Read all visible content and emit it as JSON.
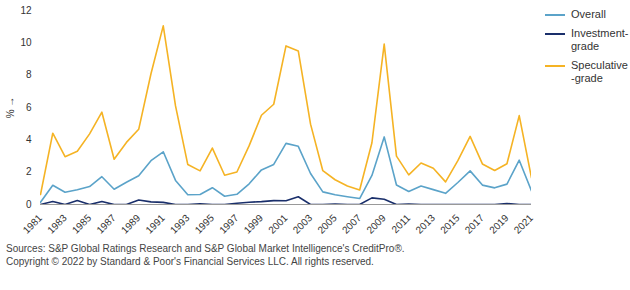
{
  "chart_data": {
    "type": "line",
    "y_label": "%",
    "x": [
      1981,
      1982,
      1983,
      1984,
      1985,
      1986,
      1987,
      1988,
      1989,
      1990,
      1991,
      1992,
      1993,
      1994,
      1995,
      1996,
      1997,
      1998,
      1999,
      2000,
      2001,
      2002,
      2003,
      2004,
      2005,
      2006,
      2007,
      2008,
      2009,
      2010,
      2011,
      2012,
      2013,
      2014,
      2015,
      2016,
      2017,
      2018,
      2019,
      2020,
      2021
    ],
    "xlim": [
      1981,
      2021
    ],
    "xticks": [
      1981,
      1983,
      1985,
      1987,
      1989,
      1991,
      1993,
      1995,
      1997,
      1999,
      2001,
      2003,
      2005,
      2007,
      2009,
      2011,
      2013,
      2015,
      2017,
      2019,
      2021
    ],
    "ylim": [
      0,
      12
    ],
    "yticks": [
      0,
      2,
      4,
      6,
      8,
      10,
      12
    ],
    "grid": false,
    "legend": "right",
    "series": [
      {
        "name": "Overall",
        "color": "#5ba3c9",
        "values": [
          0.14,
          1.19,
          0.76,
          0.91,
          1.11,
          1.72,
          0.94,
          1.38,
          1.78,
          2.71,
          3.26,
          1.49,
          0.6,
          0.62,
          1.04,
          0.51,
          0.63,
          1.28,
          2.14,
          2.48,
          3.78,
          3.6,
          1.92,
          0.78,
          0.6,
          0.48,
          0.37,
          1.8,
          4.18,
          1.21,
          0.8,
          1.14,
          0.92,
          0.69,
          1.36,
          2.08,
          1.2,
          1.03,
          1.26,
          2.74,
          0.84
        ]
      },
      {
        "name": "Investment-grade",
        "color": "#1a2f6b",
        "values": [
          0,
          0.19,
          0,
          0.25,
          0,
          0.18,
          0,
          0,
          0.28,
          0.16,
          0.13,
          0,
          0,
          0.05,
          0,
          0,
          0.08,
          0.14,
          0.18,
          0.24,
          0.23,
          0.48,
          0,
          0,
          0.03,
          0,
          0,
          0.41,
          0.32,
          0,
          0.03,
          0,
          0,
          0,
          0,
          0,
          0,
          0,
          0.06,
          0,
          0
        ]
      },
      {
        "name": "Speculative-grade",
        "color": "#f5b324",
        "values": [
          0.62,
          4.41,
          2.96,
          3.29,
          4.37,
          5.71,
          2.8,
          3.84,
          4.65,
          8.09,
          11.05,
          6.1,
          2.47,
          2.08,
          3.49,
          1.81,
          2.01,
          3.64,
          5.52,
          6.2,
          9.81,
          9.5,
          4.97,
          2.09,
          1.53,
          1.14,
          0.9,
          3.82,
          9.92,
          2.99,
          1.83,
          2.57,
          2.24,
          1.4,
          2.71,
          4.21,
          2.51,
          2.1,
          2.52,
          5.5,
          1.65
        ]
      }
    ],
    "notes": [
      "Sources: S&P Global Ratings Research and S&P Global Market Intelligence's CreditPro®.",
      "Copyright © 2022 by Standard & Poor's Financial Services LLC. All rights reserved."
    ]
  }
}
